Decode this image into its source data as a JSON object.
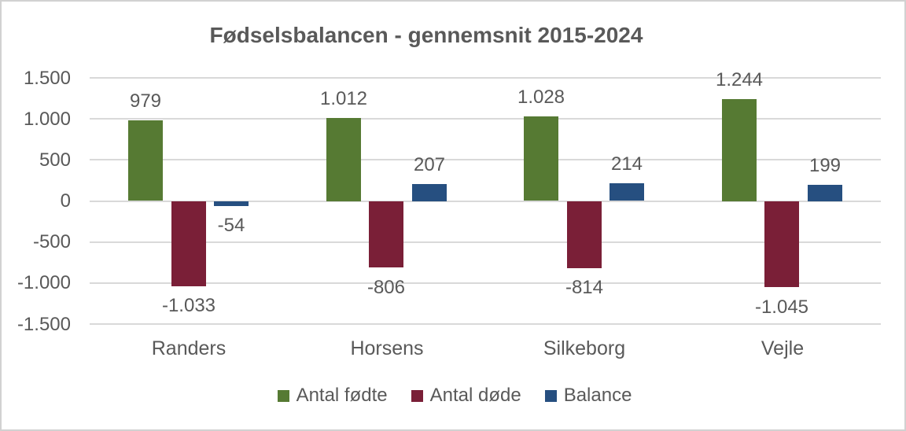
{
  "window": {
    "background": "#ffffff",
    "border_color": "#d1d1d1"
  },
  "chart_data": {
    "type": "bar",
    "title": "Fødselsbalancen - gennemsnit 2015-2024",
    "categories": [
      "Randers",
      "Horsens",
      "Silkeborg",
      "Vejle"
    ],
    "series": [
      {
        "name": "Antal fødte",
        "color": "#567A33",
        "values": [
          979,
          1012,
          1028,
          1244
        ],
        "value_labels": [
          "979",
          "1.012",
          "1.028",
          "1.244"
        ]
      },
      {
        "name": "Antal døde",
        "color": "#7A1F37",
        "values": [
          -1033,
          -806,
          -814,
          -1045
        ],
        "value_labels": [
          "-1.033",
          "-806",
          "-814",
          "-1.045"
        ]
      },
      {
        "name": "Balance",
        "color": "#264F80",
        "values": [
          -54,
          207,
          214,
          199
        ],
        "value_labels": [
          "-54",
          "207",
          "214",
          "199"
        ]
      }
    ],
    "y_axis": {
      "min": -1500,
      "max": 1500,
      "step": 500,
      "tick_values": [
        1500,
        1000,
        500,
        0,
        -500,
        -1000,
        -1500
      ],
      "tick_labels": [
        "1.500",
        "1.000",
        "500",
        "0",
        "-500",
        "-1.000",
        "-1.500"
      ]
    },
    "grid": true,
    "legend_position": "bottom",
    "colors": {
      "text": "#595959",
      "gridline": "#d9d9d9"
    }
  }
}
